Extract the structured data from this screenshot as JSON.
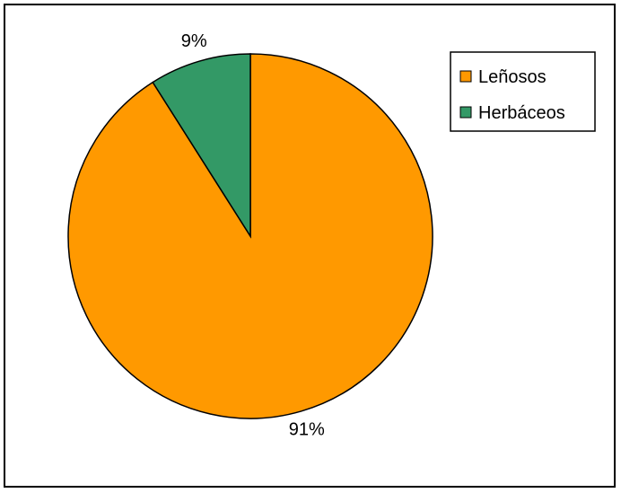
{
  "chart_data": {
    "type": "pie",
    "categories": [
      "Leñosos",
      "Herbáceos"
    ],
    "values": [
      91,
      9
    ],
    "data_labels": [
      "91%",
      "9%"
    ],
    "colors": [
      "#FF9900",
      "#339966"
    ],
    "legend_position": "top-right"
  }
}
